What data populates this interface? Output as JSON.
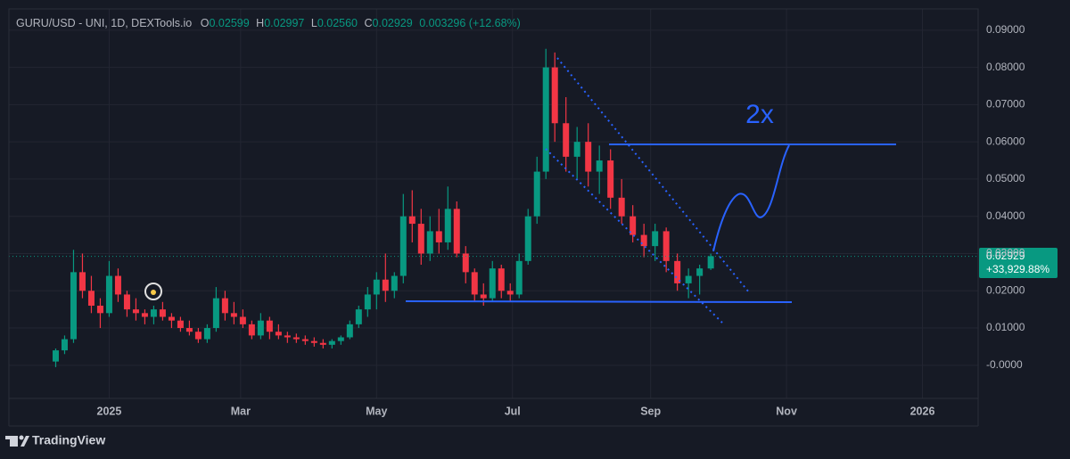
{
  "chart_data": {
    "type": "candlestick",
    "header": {
      "symbol": "GURU/USD - UNI, 1D, DEXTools.io",
      "ohlc": [
        {
          "label": "O",
          "value": "0.02599"
        },
        {
          "label": "H",
          "value": "0.02997"
        },
        {
          "label": "L",
          "value": "0.02560"
        },
        {
          "label": "C",
          "value": "0.02929"
        }
      ],
      "change": "0.003296 (+12.68%)"
    },
    "last_price_label": "0.02929",
    "last_change_label": "+33,929.88%",
    "annotation": "2x",
    "brand": "TradingView",
    "up_color": "#089981",
    "down_color": "#f23645",
    "grid": true,
    "xlim": [
      -45,
      390
    ],
    "xticks": [
      {
        "value": 0,
        "label": "2025"
      },
      {
        "value": 59,
        "label": "Mar"
      },
      {
        "value": 120,
        "label": "May"
      },
      {
        "value": 181,
        "label": "Jul"
      },
      {
        "value": 243,
        "label": "Sep"
      },
      {
        "value": 304,
        "label": "Nov"
      },
      {
        "value": 365,
        "label": "2026"
      }
    ],
    "ylim": [
      -0.0089,
      0.0957
    ],
    "yticks": [
      {
        "value": 0.09,
        "label": "0.09000"
      },
      {
        "value": 0.08,
        "label": "0.08000"
      },
      {
        "value": 0.07,
        "label": "0.07000"
      },
      {
        "value": 0.06,
        "label": "0.06000"
      },
      {
        "value": 0.05,
        "label": "0.05000"
      },
      {
        "value": 0.04,
        "label": "0.04000"
      },
      {
        "value": 0.03,
        "label": "0.03000"
      },
      {
        "value": 0.02,
        "label": "0.02000"
      },
      {
        "value": 0.01,
        "label": "0.01000"
      },
      {
        "value": 0,
        "label": "-0.0000"
      }
    ],
    "x": [
      -24,
      -20,
      -16,
      -12,
      -8,
      -4,
      0,
      4,
      8,
      12,
      16,
      20,
      24,
      28,
      32,
      36,
      40,
      44,
      48,
      52,
      56,
      60,
      64,
      68,
      72,
      76,
      80,
      84,
      88,
      92,
      96,
      100,
      104,
      108,
      112,
      116,
      120,
      124,
      128,
      132,
      136,
      140,
      144,
      148,
      152,
      156,
      160,
      164,
      168,
      172,
      176,
      180,
      184,
      188,
      192,
      196,
      200,
      205,
      210,
      215,
      220,
      225,
      230,
      235,
      240,
      245,
      250,
      255,
      260,
      265,
      270
    ],
    "open": [
      0.001,
      0.004,
      0.007,
      0.025,
      0.02,
      0.016,
      0.014,
      0.024,
      0.019,
      0.015,
      0.014,
      0.013,
      0.015,
      0.013,
      0.012,
      0.01,
      0.009,
      0.007,
      0.01,
      0.018,
      0.014,
      0.013,
      0.011,
      0.008,
      0.012,
      0.009,
      0.008,
      0.0075,
      0.007,
      0.0065,
      0.006,
      0.0055,
      0.0065,
      0.0075,
      0.011,
      0.015,
      0.019,
      0.023,
      0.02,
      0.024,
      0.04,
      0.038,
      0.03,
      0.036,
      0.033,
      0.042,
      0.03,
      0.025,
      0.019,
      0.018,
      0.026,
      0.02,
      0.019,
      0.028,
      0.04,
      0.052,
      0.08,
      0.065,
      0.056,
      0.06,
      0.052,
      0.055,
      0.045,
      0.04,
      0.035,
      0.032,
      0.036,
      0.028,
      0.022,
      0.024,
      0.02599
    ],
    "high": [
      0.0045,
      0.008,
      0.031,
      0.03,
      0.024,
      0.018,
      0.028,
      0.026,
      0.02,
      0.018,
      0.015,
      0.016,
      0.017,
      0.014,
      0.013,
      0.012,
      0.01,
      0.011,
      0.021,
      0.02,
      0.017,
      0.015,
      0.012,
      0.014,
      0.013,
      0.011,
      0.009,
      0.0085,
      0.008,
      0.0075,
      0.007,
      0.007,
      0.008,
      0.012,
      0.016,
      0.021,
      0.025,
      0.03,
      0.025,
      0.046,
      0.047,
      0.042,
      0.04,
      0.042,
      0.048,
      0.044,
      0.032,
      0.026,
      0.022,
      0.028,
      0.027,
      0.022,
      0.03,
      0.042,
      0.056,
      0.085,
      0.084,
      0.072,
      0.064,
      0.065,
      0.059,
      0.058,
      0.05,
      0.043,
      0.038,
      0.038,
      0.037,
      0.03,
      0.026,
      0.027,
      0.02997
    ],
    "low": [
      -0.0005,
      0.003,
      0.006,
      0.018,
      0.014,
      0.01,
      0.013,
      0.017,
      0.013,
      0.012,
      0.011,
      0.011,
      0.012,
      0.01,
      0.009,
      0.008,
      0.006,
      0.006,
      0.009,
      0.012,
      0.011,
      0.01,
      0.007,
      0.007,
      0.007,
      0.007,
      0.006,
      0.006,
      0.0055,
      0.005,
      0.0045,
      0.0045,
      0.0055,
      0.007,
      0.01,
      0.013,
      0.015,
      0.017,
      0.018,
      0.022,
      0.033,
      0.027,
      0.028,
      0.03,
      0.031,
      0.029,
      0.022,
      0.017,
      0.016,
      0.017,
      0.018,
      0.017,
      0.018,
      0.027,
      0.038,
      0.05,
      0.06,
      0.052,
      0.05,
      0.048,
      0.046,
      0.042,
      0.038,
      0.033,
      0.029,
      0.028,
      0.025,
      0.02,
      0.018,
      0.019,
      0.0256
    ],
    "close": [
      0.004,
      0.007,
      0.025,
      0.02,
      0.016,
      0.014,
      0.024,
      0.019,
      0.015,
      0.014,
      0.013,
      0.015,
      0.013,
      0.012,
      0.01,
      0.009,
      0.007,
      0.01,
      0.018,
      0.014,
      0.013,
      0.011,
      0.008,
      0.012,
      0.009,
      0.008,
      0.0075,
      0.007,
      0.0065,
      0.006,
      0.0055,
      0.0065,
      0.0075,
      0.011,
      0.015,
      0.019,
      0.023,
      0.02,
      0.024,
      0.04,
      0.038,
      0.03,
      0.036,
      0.033,
      0.042,
      0.03,
      0.025,
      0.019,
      0.018,
      0.026,
      0.02,
      0.019,
      0.028,
      0.04,
      0.052,
      0.08,
      0.065,
      0.056,
      0.06,
      0.052,
      0.055,
      0.045,
      0.04,
      0.035,
      0.032,
      0.036,
      0.028,
      0.022,
      0.024,
      0.026,
      0.02929
    ]
  }
}
